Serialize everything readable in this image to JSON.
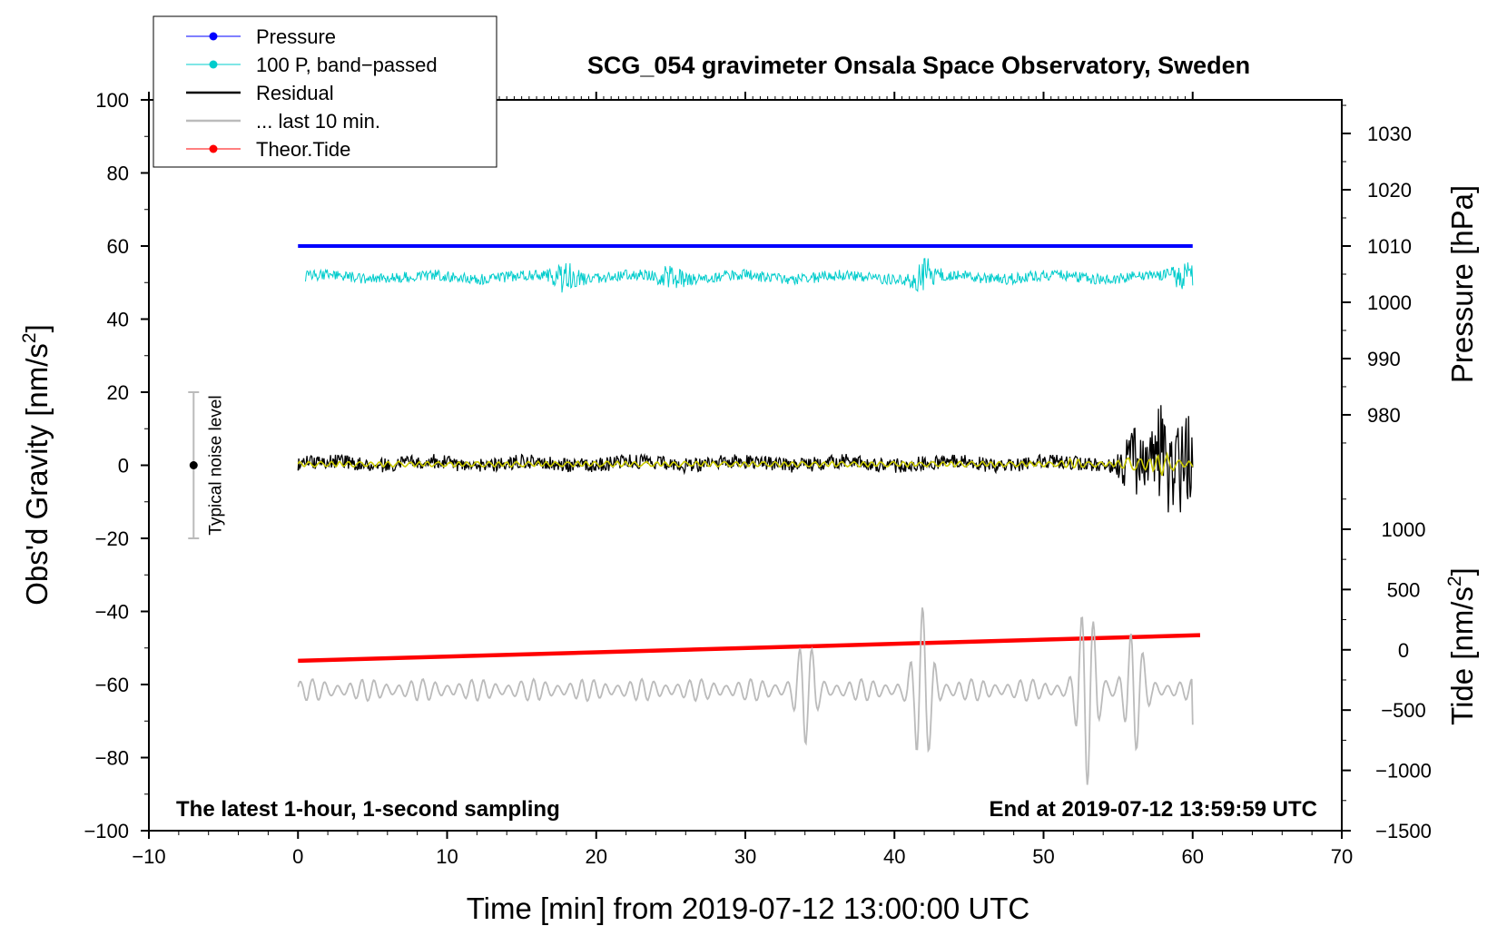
{
  "chart_data": {
    "type": "line",
    "title": "SCG_054 gravimeter Onsala Space Observatory, Sweden",
    "footer_left": "The latest 1-hour, 1-second sampling",
    "footer_right": "End at 2019-07-12 13:59:59 UTC",
    "xlabel": "Time [min] from 2019-07-12 13:00:00 UTC",
    "ylabel_left": "Obs'd Gravity [nm/s",
    "ylabel_left_sup": "2",
    "ylabel_left_end": "]",
    "ylabel_right_pressure": "Pressure [hPa]",
    "ylabel_right_tide": "Tide [nm/s",
    "ylabel_right_tide_sup": "2",
    "ylabel_right_tide_end": "]",
    "xlim": [
      -10,
      70
    ],
    "ylim_left": [
      -100,
      100
    ],
    "x_ticks": [
      -10,
      0,
      10,
      20,
      30,
      40,
      50,
      60,
      70
    ],
    "x_tick_labels": [
      "−10",
      "0",
      "10",
      "20",
      "30",
      "40",
      "50",
      "60",
      "70"
    ],
    "y_ticks": [
      100,
      80,
      60,
      40,
      20,
      0,
      -20,
      -40,
      -60,
      -80,
      -100
    ],
    "y_tick_labels": [
      "100",
      "80",
      "60",
      "40",
      "20",
      "0",
      "−20",
      "−40",
      "−60",
      "−80",
      "−100"
    ],
    "pressure_axis": {
      "ticks": [
        1030,
        1020,
        1010,
        1000,
        990,
        980
      ],
      "tick_labels": [
        "1030",
        "1020",
        "1010",
        "1000",
        "990",
        "980"
      ],
      "left_value_map": {
        "hpa_a": 1010,
        "left_a": 60,
        "hpa_b": 1000,
        "left_b": 44.6
      }
    },
    "tide_axis": {
      "ticks": [
        1000,
        500,
        0,
        -500,
        -1000,
        -1500
      ],
      "tick_labels": [
        "1000",
        "500",
        "0",
        "−500",
        "−1000",
        "−1500"
      ],
      "left_value_map": {
        "tide_a": 0,
        "left_a": -50.5,
        "tide_b": -1500,
        "left_b": -100
      }
    },
    "legend": [
      {
        "name": "Pressure",
        "color": "#0000ff",
        "marker": true
      },
      {
        "name": "100 P, band−passed",
        "color": "#00cccc",
        "marker": true
      },
      {
        "name": "Residual",
        "color": "#000000",
        "marker": false
      },
      {
        "name": "... last 10 min.",
        "color": "#bbbbbb",
        "marker": false
      },
      {
        "name": "Theor.Tide",
        "color": "#ff0000",
        "marker": true
      }
    ],
    "noise_bar": {
      "label": "Typical noise level",
      "x": -7,
      "center": 0,
      "low": -20,
      "high": 20
    },
    "series": [
      {
        "name": "Pressure",
        "color": "#0000ff",
        "x_range": [
          0,
          60
        ],
        "level": 60,
        "style": "flat"
      },
      {
        "name": "100 P, band−passed",
        "color": "#00cccc",
        "x_range": [
          0.5,
          60
        ],
        "level": 51.5,
        "amplitude": 1.5,
        "bursts": [
          [
            18,
            3
          ],
          [
            25,
            2.5
          ],
          [
            42,
            4
          ],
          [
            59.5,
            3
          ]
        ],
        "style": "noisy"
      },
      {
        "name": "Residual",
        "color": "#000000",
        "x_range": [
          0,
          60
        ],
        "level": 0.5,
        "amplitude": 2.0,
        "bursts": [
          [
            56,
            5
          ],
          [
            58,
            8
          ],
          [
            59.5,
            7
          ]
        ],
        "style": "noisy"
      },
      {
        "name": "Residual (smoothed)",
        "color": "#cccc00",
        "x_range": [
          0,
          60
        ],
        "level": 0.3,
        "amplitude": 0.8,
        "bursts": [
          [
            52,
            2
          ],
          [
            56,
            3
          ],
          [
            58,
            4
          ]
        ],
        "style": "smooth"
      },
      {
        "name": "Theor.Tide",
        "color": "#ff0000",
        "x_range": [
          0,
          60.5
        ],
        "start": -53.5,
        "end": -46.5,
        "style": "linear"
      },
      {
        "name": "... last 10 min.",
        "color": "#bbbbbb",
        "x_range": [
          0,
          60
        ],
        "level": -61.5,
        "amplitude": 3,
        "bursts": [
          [
            34,
            5
          ],
          [
            42,
            8
          ],
          [
            53,
            9
          ],
          [
            56,
            6
          ]
        ],
        "end_value": -71,
        "style": "oscillating"
      }
    ]
  }
}
